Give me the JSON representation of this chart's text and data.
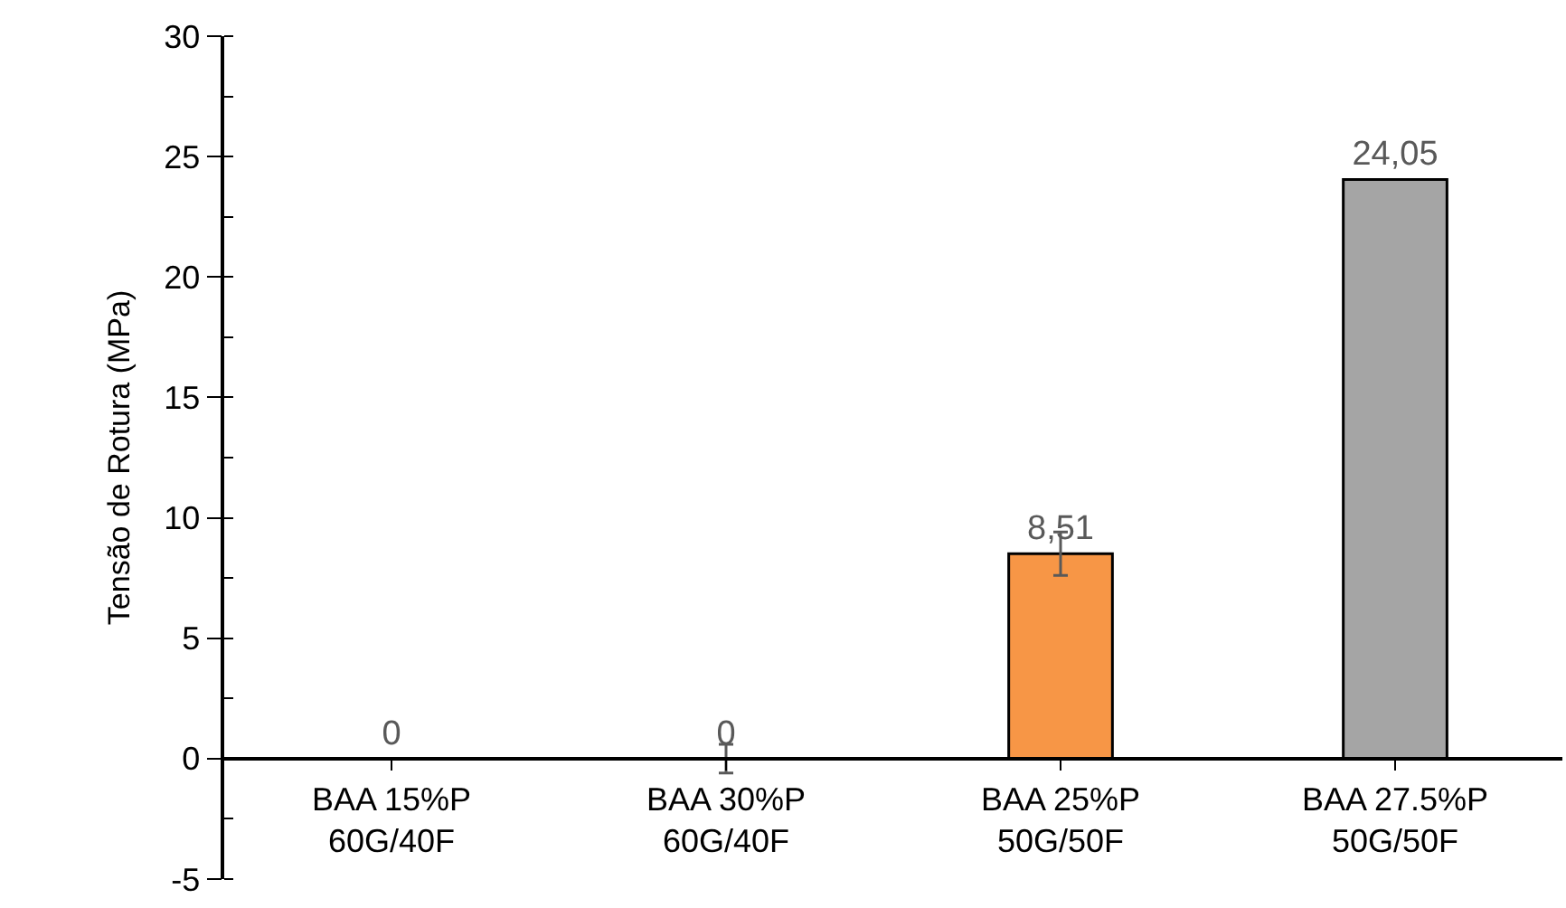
{
  "chart_data": {
    "type": "bar",
    "ylabel": "Tensão de Rotura (MPa)",
    "categories": [
      "BAA 15%P\n60G/40F",
      "BAA 30%P\n60G/40F",
      "BAA 25%P\n50G/50F",
      "BAA 27.5%P\n50G/50F"
    ],
    "values": [
      0,
      0,
      8.51,
      24.05
    ],
    "colors": [
      "#f79646",
      "#f79646",
      "#f79646",
      "#a5a5a5"
    ],
    "errors": [
      null,
      0.6,
      0.9,
      null
    ],
    "value_labels": [
      "0",
      "0",
      "8,51",
      "24,05"
    ],
    "ylim": [
      -5,
      30
    ],
    "yticks": [
      -5,
      0,
      5,
      10,
      15,
      20,
      25,
      30
    ],
    "grid": false
  }
}
